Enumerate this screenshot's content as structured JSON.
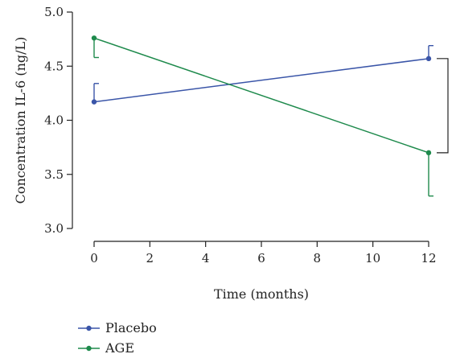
{
  "chart_data": {
    "type": "line",
    "xlabel": "Time (months)",
    "ylabel": "Concentration IL-6 (ng/L)",
    "xlim": [
      0,
      12
    ],
    "ylim": [
      3.0,
      5.0
    ],
    "x_ticks": [
      0,
      2,
      4,
      6,
      8,
      10,
      12
    ],
    "x_tick_labels": [
      "0",
      "2",
      "4",
      "6",
      "8",
      "10",
      "12"
    ],
    "y_ticks": [
      3.0,
      3.5,
      4.0,
      4.5,
      5.0
    ],
    "y_tick_labels": [
      "3.0",
      "3.5",
      "4.0",
      "4.5",
      "5.0"
    ],
    "grid": false,
    "legend_position": "bottom-left",
    "series": [
      {
        "name": "Placebo",
        "color": "#3a55a8",
        "x": [
          0,
          12
        ],
        "y": [
          4.17,
          4.57
        ],
        "error_upper": [
          4.34,
          4.69
        ],
        "error_lower": [
          4.17,
          4.57
        ]
      },
      {
        "name": "AGE",
        "color": "#1e8a4c",
        "x": [
          0,
          12
        ],
        "y": [
          4.76,
          3.7
        ],
        "error_upper": [
          4.76,
          3.7
        ],
        "error_lower": [
          4.58,
          3.3
        ]
      }
    ],
    "annotations": [
      {
        "type": "significance-bracket",
        "between": [
          "Placebo",
          "AGE"
        ],
        "at_x": 12,
        "text": ""
      }
    ]
  }
}
